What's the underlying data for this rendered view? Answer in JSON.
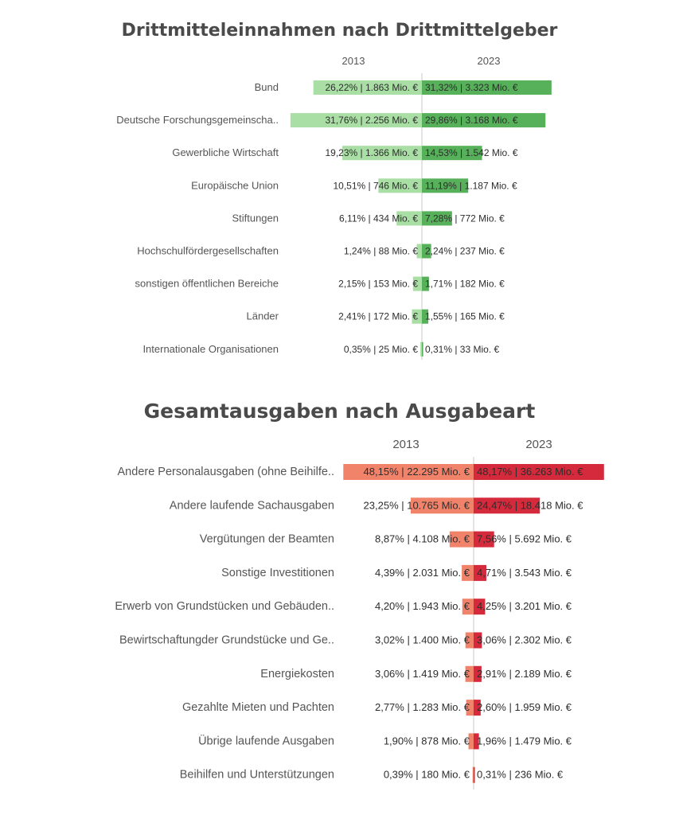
{
  "chart_data": [
    {
      "type": "bar",
      "title": "Drittmitteleinnahmen nach Drittmittelgeber",
      "year_labels": [
        "2013",
        "2023"
      ],
      "categories": [
        "Bund",
        "Deutsche Forschungsgemeinscha..",
        "Gewerbliche Wirtschaft",
        "Europäische Union",
        "Stiftungen",
        "Hochschulfördergesellschaften",
        "sonstigen öffentlichen Bereiche",
        "Länder",
        "Internationale Organisationen"
      ],
      "series": [
        {
          "name": "2013",
          "values": [
            26.22,
            31.76,
            19.23,
            10.51,
            6.11,
            1.24,
            2.15,
            2.41,
            0.35
          ],
          "labels": [
            "26,22% | 1.863 Mio. €",
            "31,76% | 2.256 Mio. €",
            "19,23% | 1.366 Mio. €",
            "10,51% | 746 Mio. €",
            "6,11% | 434 Mio. €",
            "1,24% | 88 Mio. €",
            "2,15% | 153 Mio. €",
            "2,41% | 172 Mio. €",
            "0,35% | 25 Mio. €"
          ],
          "color": "#a9dea4"
        },
        {
          "name": "2023",
          "values": [
            31.32,
            29.86,
            14.53,
            11.19,
            7.28,
            2.24,
            1.71,
            1.55,
            0.31
          ],
          "labels": [
            "31,32% | 3.323 Mio. €",
            "29,86% | 3.168 Mio. €",
            "14,53% | 1.542 Mio. €",
            "11,19% | 1.187 Mio. €",
            "7,28% | 772 Mio. €",
            "2,24% | 237 Mio. €",
            "1,71% | 182 Mio. €",
            "1,55% | 165 Mio. €",
            "0,31% | 33 Mio. €"
          ],
          "color": "#57b05a"
        }
      ]
    },
    {
      "type": "bar",
      "title": "Gesamtausgaben nach Ausgabeart",
      "year_labels": [
        "2013",
        "2023"
      ],
      "categories": [
        "Andere Personalausgaben (ohne Beihilfe..",
        "Andere laufende Sachausgaben",
        "Vergütungen der Beamten",
        "Sonstige Investitionen",
        "Erwerb von Grundstücken und Gebäuden..",
        "Bewirtschaftungder Grundstücke und Ge..",
        "Energiekosten",
        "Gezahlte Mieten und Pachten",
        "Übrige laufende Ausgaben",
        "Beihilfen und Unterstützungen"
      ],
      "series": [
        {
          "name": "2013",
          "values": [
            48.15,
            23.25,
            8.87,
            4.39,
            4.2,
            3.02,
            3.06,
            2.77,
            1.9,
            0.39
          ],
          "labels": [
            "48,15% | 22.295 Mio. €",
            "23,25% | 10.765 Mio. €",
            "8,87% | 4.108 Mio. €",
            "4,39% | 2.031 Mio. €",
            "4,20% | 1.943 Mio. €",
            "3,02% | 1.400 Mio. €",
            "3,06% | 1.419 Mio. €",
            "2,77% | 1.283 Mio. €",
            "1,90% | 878 Mio. €",
            "0,39% | 180 Mio. €"
          ],
          "color": "#f2836b"
        },
        {
          "name": "2023",
          "values": [
            48.17,
            24.47,
            7.56,
            4.71,
            4.25,
            3.06,
            2.91,
            2.6,
            1.96,
            0.31
          ],
          "labels": [
            "48,17% | 36.263 Mio. €",
            "24,47% | 18.418 Mio. €",
            "7,56% | 5.692 Mio. €",
            "4,71% | 3.543 Mio. €",
            "4,25% | 3.201 Mio. €",
            "3,06% | 2.302 Mio. €",
            "2,91% | 2.189 Mio. €",
            "2,60% | 1.959 Mio. €",
            "1,96% | 1.479 Mio. €",
            "0,31% | 236 Mio. €"
          ],
          "color": "#d42a3c"
        }
      ]
    }
  ]
}
